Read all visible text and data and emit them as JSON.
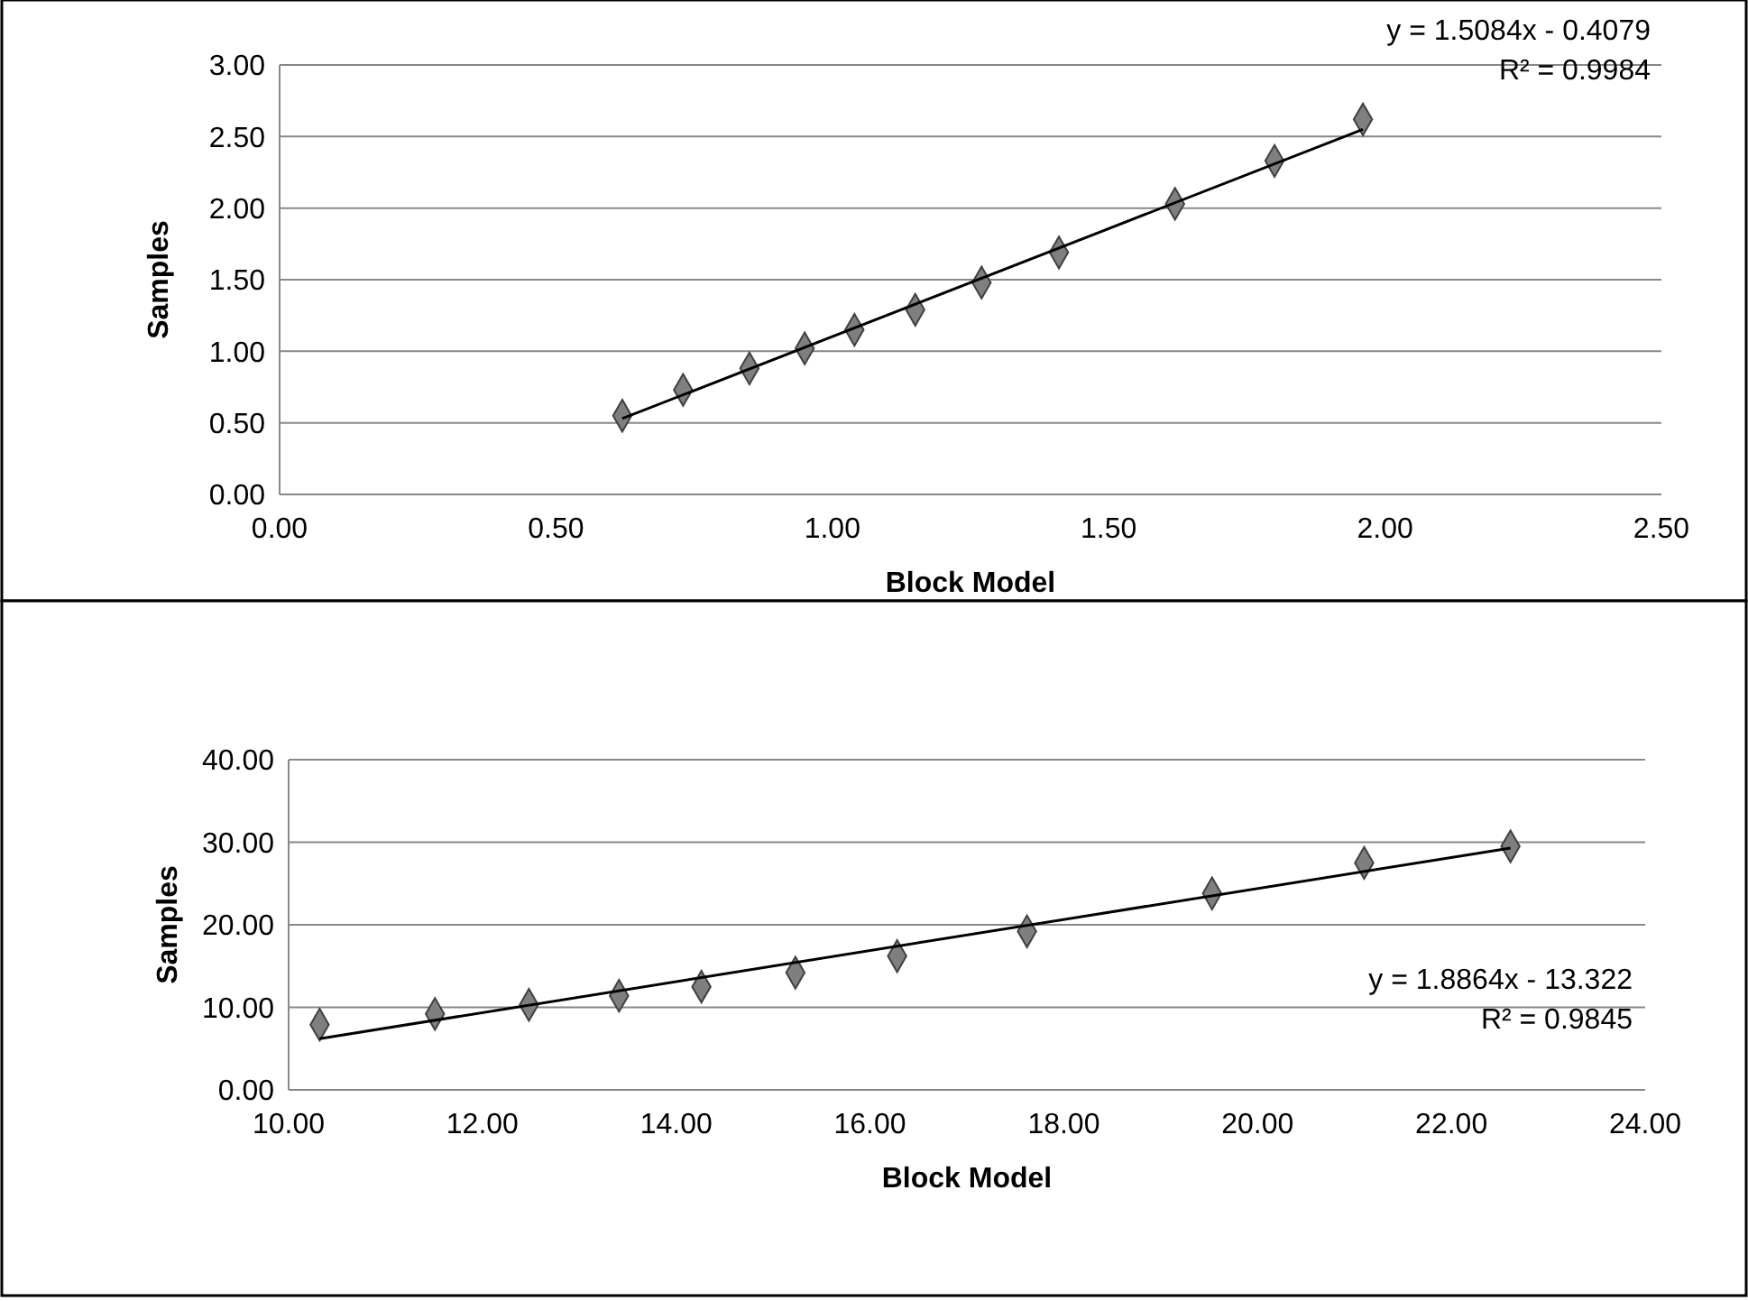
{
  "chart_data": [
    {
      "type": "scatter",
      "xlabel": "Block Model",
      "ylabel": "Samples",
      "xlim": [
        0,
        2.5
      ],
      "xticks": [
        {
          "value": 0,
          "label": "0.00"
        },
        {
          "value": 0.5,
          "label": "0.50"
        },
        {
          "value": 1,
          "label": "1.00"
        },
        {
          "value": 1.5,
          "label": "1.50"
        },
        {
          "value": 2,
          "label": "2.00"
        },
        {
          "value": 2.5,
          "label": "2.50"
        }
      ],
      "ylim": [
        0,
        3
      ],
      "yticks": [
        {
          "value": 0,
          "label": "0.00"
        },
        {
          "value": 0.5,
          "label": "0.50"
        },
        {
          "value": 1,
          "label": "1.00"
        },
        {
          "value": 1.5,
          "label": "1.50"
        },
        {
          "value": 2,
          "label": "2.00"
        },
        {
          "value": 2.5,
          "label": "2.50"
        },
        {
          "value": 3,
          "label": "3.00"
        }
      ],
      "grid": "y",
      "series": [
        {
          "marker": "diamond",
          "color": "#7f7f7f",
          "x": [
            0.62,
            0.73,
            0.85,
            0.95,
            1.04,
            1.15,
            1.27,
            1.41,
            1.62,
            1.8,
            1.96
          ],
          "values": [
            0.55,
            0.73,
            0.88,
            1.02,
            1.15,
            1.29,
            1.48,
            1.69,
            2.03,
            2.33,
            2.62
          ]
        },
        {
          "type": "line",
          "color": "#000000",
          "x": [
            0.62,
            1.96
          ],
          "values": [
            0.53,
            2.55
          ]
        }
      ],
      "annotations": [
        "y = 1.5084x - 0.4079",
        "R² = 0.9984"
      ]
    },
    {
      "type": "scatter",
      "xlabel": "Block Model",
      "ylabel": "Samples",
      "xlim": [
        10,
        24
      ],
      "xticks": [
        {
          "value": 10,
          "label": "10.00"
        },
        {
          "value": 12,
          "label": "12.00"
        },
        {
          "value": 14,
          "label": "14.00"
        },
        {
          "value": 16,
          "label": "16.00"
        },
        {
          "value": 18,
          "label": "18.00"
        },
        {
          "value": 20,
          "label": "20.00"
        },
        {
          "value": 22,
          "label": "22.00"
        },
        {
          "value": 24,
          "label": "24.00"
        }
      ],
      "ylim": [
        0,
        40
      ],
      "yticks": [
        {
          "value": 0,
          "label": "0.00"
        },
        {
          "value": 10,
          "label": "10.00"
        },
        {
          "value": 20,
          "label": "20.00"
        },
        {
          "value": 30,
          "label": "30.00"
        },
        {
          "value": 40,
          "label": "40.00"
        }
      ],
      "grid": "y",
      "series": [
        {
          "marker": "diamond",
          "color": "#7f7f7f",
          "x": [
            10.32,
            11.51,
            12.48,
            13.41,
            14.26,
            15.23,
            16.28,
            17.62,
            19.53,
            21.1,
            22.61
          ],
          "values": [
            7.9,
            9.2,
            10.3,
            11.4,
            12.5,
            14.2,
            16.2,
            19.2,
            23.8,
            27.5,
            29.5
          ]
        },
        {
          "type": "line",
          "color": "#000000",
          "x": [
            10.32,
            22.61
          ],
          "values": [
            6.2,
            29.3
          ]
        }
      ],
      "annotations": [
        "y = 1.8864x - 13.322",
        "R² = 0.9845"
      ]
    }
  ]
}
